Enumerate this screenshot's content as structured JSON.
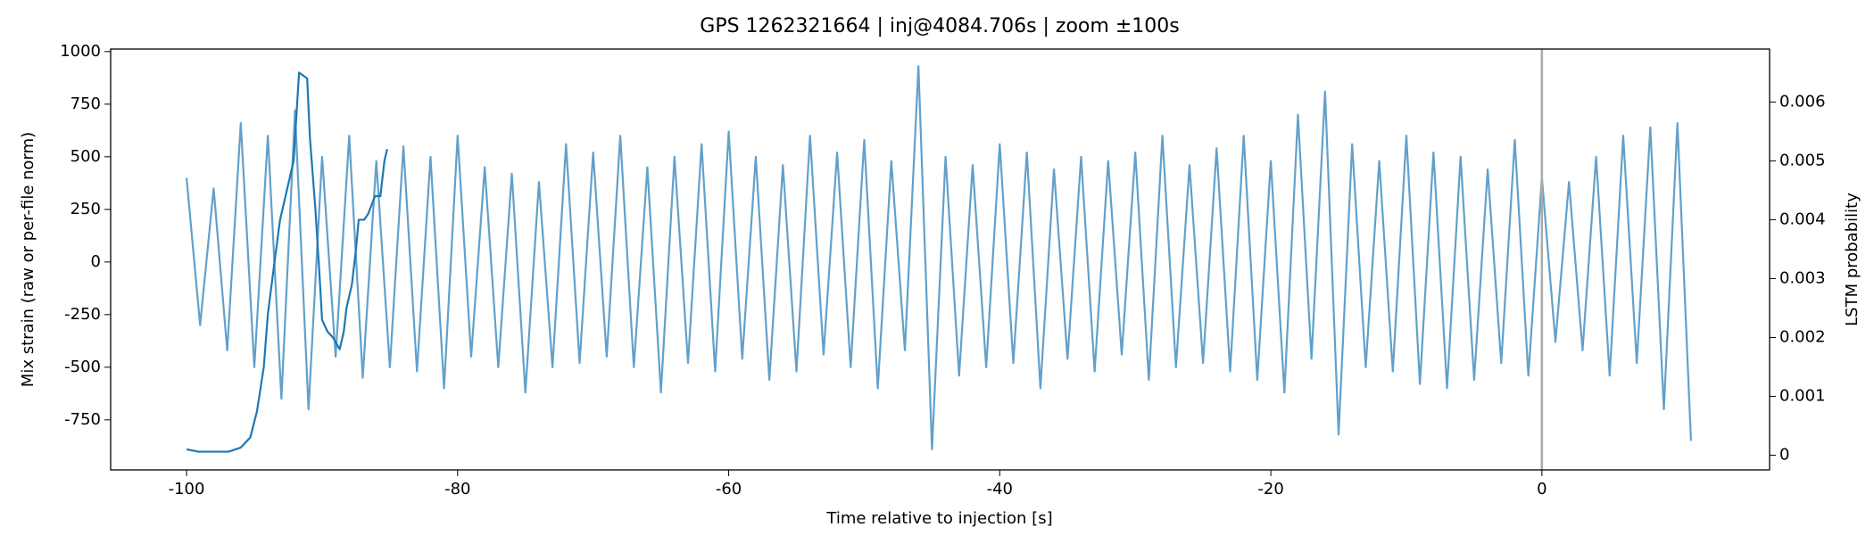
{
  "chart_data": {
    "type": "line",
    "title": "GPS 1262321664 | inj@4084.706s | zoom ±100s",
    "x_label": "Time relative to injection [s]",
    "y_label": "Mix strain (raw or per-file norm)",
    "y2_label": "LSTM probability",
    "xlim": [
      -105.6,
      16.8
    ],
    "xticks": [
      -100,
      -80,
      -60,
      -40,
      -20,
      0
    ],
    "ylim": [
      -988,
      1012
    ],
    "yticks": [
      -750,
      -500,
      -250,
      0,
      250,
      500,
      750,
      1000
    ],
    "y2lim": [
      -0.00025,
      0.0069
    ],
    "y2ticks": [
      0.0,
      0.001,
      0.002,
      0.003,
      0.004,
      0.005,
      0.006
    ],
    "vline": 0,
    "vline_color": "#aaaaaa",
    "series": [
      {
        "color": "#1f77b4",
        "opacity": 0.7,
        "x": [
          -100,
          -99,
          -98,
          -97,
          -96,
          -95,
          -94,
          -93,
          -92,
          -91,
          -90,
          -89,
          -88,
          -87,
          -86,
          -85,
          -84,
          -83,
          -82,
          -81,
          -80,
          -79,
          -78,
          -77,
          -76,
          -75,
          -74,
          -73,
          -72,
          -71,
          -70,
          -69,
          -68,
          -67,
          -66,
          -65,
          -64,
          -63,
          -62,
          -61,
          -60,
          -59,
          -58,
          -57,
          -56,
          -55,
          -54,
          -53,
          -52,
          -51,
          -50,
          -49,
          -48,
          -47,
          -46,
          -45,
          -44,
          -43,
          -42,
          -41,
          -40,
          -39,
          -38,
          -37,
          -36,
          -35,
          -34,
          -33,
          -32,
          -31,
          -30,
          -29,
          -28,
          -27,
          -26,
          -25,
          -24,
          -23,
          -22,
          -21,
          -20,
          -19,
          -18,
          -17,
          -16,
          -15,
          -14,
          -13,
          -12,
          -11,
          -10,
          -9,
          -8,
          -7,
          -6,
          -5,
          -4,
          -3,
          -2,
          -1,
          0,
          1,
          2,
          3,
          4,
          5,
          6,
          7,
          8,
          9,
          10,
          11
        ],
        "values": [
          400,
          -300,
          350,
          -420,
          660,
          -500,
          600,
          -650,
          720,
          -700,
          500,
          -450,
          600,
          -550,
          480,
          -500,
          550,
          -520,
          500,
          -600,
          600,
          -450,
          450,
          -500,
          420,
          -620,
          380,
          -500,
          560,
          -480,
          520,
          -450,
          600,
          -500,
          450,
          -620,
          500,
          -480,
          560,
          -520,
          620,
          -460,
          500,
          -560,
          460,
          -520,
          600,
          -440,
          520,
          -500,
          580,
          -600,
          480,
          -420,
          930,
          -890,
          500,
          -540,
          460,
          -500,
          560,
          -480,
          520,
          -600,
          440,
          -460,
          500,
          -520,
          480,
          -440,
          520,
          -560,
          600,
          -500,
          460,
          -480,
          540,
          -520,
          600,
          -560,
          480,
          -620,
          700,
          -460,
          810,
          -820,
          560,
          -500,
          480,
          -520,
          600,
          -580,
          520,
          -600,
          500,
          -560,
          440,
          -480,
          580,
          -540,
          400,
          -380,
          380,
          -420,
          500,
          -540,
          600,
          -480,
          640,
          -700,
          660,
          -850
        ]
      },
      {
        "color": "#1f77b4",
        "opacity": 1,
        "axis": "y2",
        "x": [
          -100,
          -99.1,
          -96.9,
          -96.0,
          -95.3,
          -94.8,
          -94.3,
          -94.0,
          -93.5,
          -93.1,
          -92.5,
          -92.1,
          -91.7,
          -91.1,
          -90.9,
          -90.5,
          -90.2,
          -90.0,
          -89.6,
          -89.2,
          -88.7,
          -88.4,
          -88.2,
          -87.8,
          -87.5,
          -87.3,
          -86.9,
          -86.6,
          -86.1,
          -85.7,
          -85.4,
          -85.2
        ],
        "values": [
          0.0001,
          6e-05,
          6e-05,
          0.00013,
          0.0003,
          0.00075,
          0.0015,
          0.0024,
          0.0033,
          0.004,
          0.0046,
          0.005,
          0.0065,
          0.0064,
          0.0054,
          0.0042,
          0.0031,
          0.0023,
          0.0021,
          0.002,
          0.0018,
          0.0021,
          0.0025,
          0.0029,
          0.0035,
          0.004,
          0.004,
          0.0041,
          0.0044,
          0.0044,
          0.005,
          0.0052
        ]
      }
    ]
  }
}
